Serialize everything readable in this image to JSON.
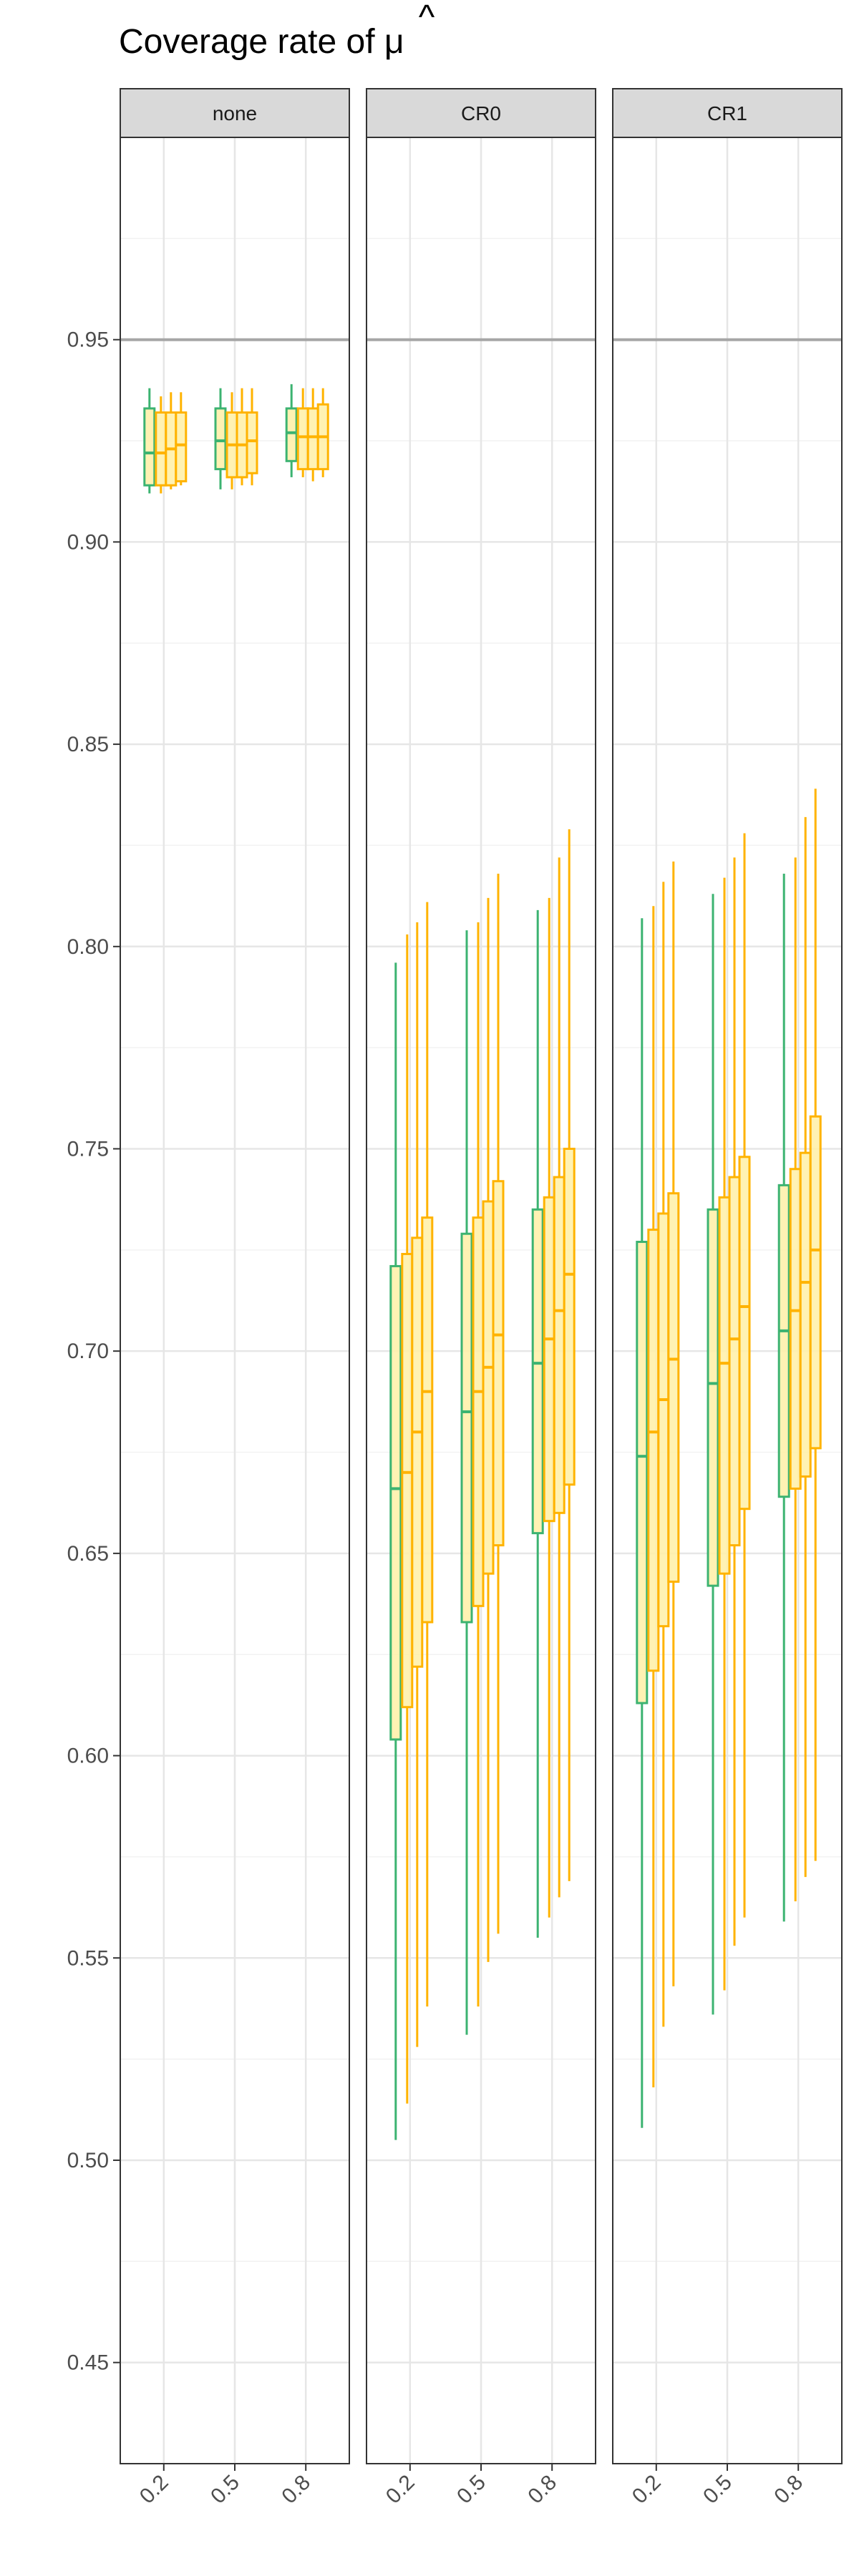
{
  "chart_data": {
    "type": "boxplot",
    "title": "Coverage rate of μ̂",
    "title_prefix": "Coverage rate of ",
    "title_symbol": "μ",
    "title_accent": "^",
    "xlabel": "",
    "ylabel": "",
    "ylim": [
      0.425,
      1.0
    ],
    "yticks": [
      0.45,
      0.5,
      0.55,
      0.6,
      0.65,
      0.7,
      0.75,
      0.8,
      0.85,
      0.9,
      0.95
    ],
    "ytick_labels": [
      "0.45",
      "0.50",
      "0.55",
      "0.60",
      "0.65",
      "0.70",
      "0.75",
      "0.80",
      "0.85",
      "0.90",
      "0.95"
    ],
    "categories": [
      "0.2",
      "0.5",
      "0.8"
    ],
    "reference_line": 0.95,
    "grid": true,
    "legend": "none",
    "colors": {
      "green": "#3cb371",
      "orange": "#ffb300",
      "fill": "#fff0a6",
      "reference": "#a6a6a6",
      "strip": "#d9d9d9"
    },
    "box_colors": [
      "green",
      "orange",
      "orange",
      "orange"
    ],
    "panels": [
      {
        "label": "none",
        "boxes": [
          [
            {
              "min": 0.912,
              "q1": 0.914,
              "median": 0.922,
              "q3": 0.933,
              "max": 0.938
            },
            {
              "min": 0.912,
              "q1": 0.914,
              "median": 0.922,
              "q3": 0.932,
              "max": 0.936
            },
            {
              "min": 0.913,
              "q1": 0.914,
              "median": 0.923,
              "q3": 0.932,
              "max": 0.937
            },
            {
              "min": 0.914,
              "q1": 0.915,
              "median": 0.924,
              "q3": 0.932,
              "max": 0.937
            }
          ],
          [
            {
              "min": 0.913,
              "q1": 0.918,
              "median": 0.925,
              "q3": 0.933,
              "max": 0.938
            },
            {
              "min": 0.913,
              "q1": 0.916,
              "median": 0.924,
              "q3": 0.932,
              "max": 0.937
            },
            {
              "min": 0.914,
              "q1": 0.916,
              "median": 0.924,
              "q3": 0.932,
              "max": 0.938
            },
            {
              "min": 0.914,
              "q1": 0.917,
              "median": 0.925,
              "q3": 0.932,
              "max": 0.938
            }
          ],
          [
            {
              "min": 0.916,
              "q1": 0.92,
              "median": 0.927,
              "q3": 0.933,
              "max": 0.939
            },
            {
              "min": 0.916,
              "q1": 0.918,
              "median": 0.926,
              "q3": 0.933,
              "max": 0.938
            },
            {
              "min": 0.915,
              "q1": 0.918,
              "median": 0.926,
              "q3": 0.933,
              "max": 0.938
            },
            {
              "min": 0.916,
              "q1": 0.918,
              "median": 0.926,
              "q3": 0.934,
              "max": 0.938
            }
          ]
        ]
      },
      {
        "label": "CR0",
        "boxes": [
          [
            {
              "min": 0.505,
              "q1": 0.604,
              "median": 0.666,
              "q3": 0.721,
              "max": 0.796
            },
            {
              "min": 0.514,
              "q1": 0.612,
              "median": 0.67,
              "q3": 0.724,
              "max": 0.803
            },
            {
              "min": 0.528,
              "q1": 0.622,
              "median": 0.68,
              "q3": 0.728,
              "max": 0.806
            },
            {
              "min": 0.538,
              "q1": 0.633,
              "median": 0.69,
              "q3": 0.733,
              "max": 0.811
            }
          ],
          [
            {
              "min": 0.531,
              "q1": 0.633,
              "median": 0.685,
              "q3": 0.729,
              "max": 0.804
            },
            {
              "min": 0.538,
              "q1": 0.637,
              "median": 0.69,
              "q3": 0.733,
              "max": 0.806
            },
            {
              "min": 0.549,
              "q1": 0.645,
              "median": 0.696,
              "q3": 0.737,
              "max": 0.812
            },
            {
              "min": 0.556,
              "q1": 0.652,
              "median": 0.704,
              "q3": 0.742,
              "max": 0.818
            }
          ],
          [
            {
              "min": 0.555,
              "q1": 0.655,
              "median": 0.697,
              "q3": 0.735,
              "max": 0.809
            },
            {
              "min": 0.56,
              "q1": 0.658,
              "median": 0.703,
              "q3": 0.738,
              "max": 0.812
            },
            {
              "min": 0.565,
              "q1": 0.66,
              "median": 0.71,
              "q3": 0.743,
              "max": 0.822
            },
            {
              "min": 0.569,
              "q1": 0.667,
              "median": 0.719,
              "q3": 0.75,
              "max": 0.829
            }
          ]
        ]
      },
      {
        "label": "CR1",
        "boxes": [
          [
            {
              "min": 0.508,
              "q1": 0.613,
              "median": 0.674,
              "q3": 0.727,
              "max": 0.807
            },
            {
              "min": 0.518,
              "q1": 0.621,
              "median": 0.68,
              "q3": 0.73,
              "max": 0.81
            },
            {
              "min": 0.533,
              "q1": 0.632,
              "median": 0.688,
              "q3": 0.734,
              "max": 0.816
            },
            {
              "min": 0.543,
              "q1": 0.643,
              "median": 0.698,
              "q3": 0.739,
              "max": 0.821
            }
          ],
          [
            {
              "min": 0.536,
              "q1": 0.642,
              "median": 0.692,
              "q3": 0.735,
              "max": 0.813
            },
            {
              "min": 0.542,
              "q1": 0.645,
              "median": 0.697,
              "q3": 0.738,
              "max": 0.817
            },
            {
              "min": 0.553,
              "q1": 0.652,
              "median": 0.703,
              "q3": 0.743,
              "max": 0.822
            },
            {
              "min": 0.56,
              "q1": 0.661,
              "median": 0.711,
              "q3": 0.748,
              "max": 0.828
            }
          ],
          [
            {
              "min": 0.559,
              "q1": 0.664,
              "median": 0.705,
              "q3": 0.741,
              "max": 0.818
            },
            {
              "min": 0.564,
              "q1": 0.666,
              "median": 0.71,
              "q3": 0.745,
              "max": 0.822
            },
            {
              "min": 0.57,
              "q1": 0.669,
              "median": 0.717,
              "q3": 0.749,
              "max": 0.832
            },
            {
              "min": 0.574,
              "q1": 0.676,
              "median": 0.725,
              "q3": 0.758,
              "max": 0.839
            }
          ]
        ]
      }
    ]
  }
}
